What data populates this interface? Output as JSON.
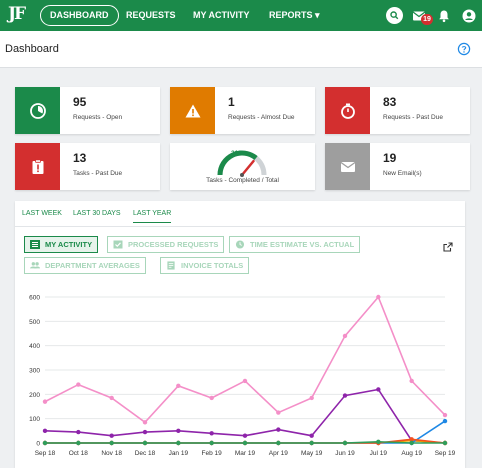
{
  "nav": {
    "logo": "JF",
    "dashboard": "DASHBOARD",
    "requests": "REQUESTS",
    "my_activity": "MY ACTIVITY",
    "reports": "REPORTS ▾",
    "mail_badge": "19"
  },
  "header": {
    "title": "Dashboard"
  },
  "cards": [
    {
      "value": "95",
      "label": "Requests - Open",
      "color": "#1b8a4a",
      "icon": "pie-icon"
    },
    {
      "value": "1",
      "label": "Requests - Almost Due",
      "color": "#e07b00",
      "icon": "warning-icon"
    },
    {
      "value": "83",
      "label": "Requests - Past Due",
      "color": "#d32f2f",
      "icon": "stopwatch-icon"
    },
    {
      "value": "13",
      "label": "Tasks - Past Due",
      "color": "#d32f2f",
      "icon": "clipboard-alert-icon"
    },
    {
      "value": "19",
      "label": "New Email(s)",
      "color": "#9e9e9e",
      "icon": "envelope-icon"
    }
  ],
  "gauge": {
    "value": "210",
    "label": "Tasks - Completed / Total",
    "fraction": 0.72
  },
  "tabs": [
    "LAST WEEK",
    "LAST 30 DAYS",
    "LAST YEAR"
  ],
  "chips": [
    {
      "label": "MY ACTIVITY"
    },
    {
      "label": "PROCESSED REQUESTS"
    },
    {
      "label": "TIME ESTIMATE VS. ACTUAL"
    },
    {
      "label": "DEPARTMENT AVERAGES"
    },
    {
      "label": "INVOICE TOTALS"
    }
  ],
  "chart_data": {
    "type": "line",
    "categories": [
      "Sep 18",
      "Oct 18",
      "Nov 18",
      "Dec 18",
      "Jan 19",
      "Feb 19",
      "Mar 19",
      "Apr 19",
      "May 19",
      "Jun 19",
      "Jul 19",
      "Aug 19",
      "Sep 19"
    ],
    "y_ticks": [
      0,
      100,
      200,
      300,
      400,
      500,
      600
    ],
    "ylim": [
      0,
      600
    ],
    "grid": true,
    "legend": "none",
    "series": [
      {
        "color": "#f48fc8",
        "values": [
          170,
          240,
          185,
          85,
          235,
          185,
          255,
          125,
          185,
          440,
          600,
          255,
          115
        ]
      },
      {
        "color": "#8e24aa",
        "values": [
          50,
          45,
          30,
          45,
          50,
          40,
          30,
          55,
          30,
          195,
          220,
          10,
          0
        ]
      },
      {
        "color": "#e8a400",
        "values": [
          0,
          0,
          0,
          0,
          0,
          0,
          0,
          0,
          0,
          0,
          0,
          10,
          0
        ]
      },
      {
        "color": "#1e88e5",
        "values": [
          0,
          0,
          0,
          0,
          0,
          0,
          0,
          0,
          0,
          0,
          0,
          0,
          90
        ]
      },
      {
        "color": "#f4511e",
        "values": [
          0,
          0,
          0,
          0,
          0,
          0,
          0,
          0,
          0,
          0,
          0,
          15,
          0
        ]
      },
      {
        "color": "#2e9e5b",
        "values": [
          0,
          0,
          0,
          0,
          0,
          0,
          0,
          0,
          0,
          0,
          5,
          0,
          0
        ]
      }
    ]
  }
}
